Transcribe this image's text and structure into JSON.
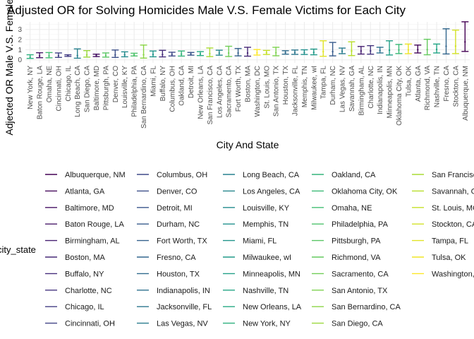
{
  "chart_data": {
    "type": "errorbar",
    "title": "Adjusted OR for Solving Homicides Male V.S. Female Victims for Each City",
    "xlabel": "City And State",
    "ylabel": "Adjected OR Male V.S. Female",
    "yticks": [
      0,
      1,
      2,
      3
    ],
    "ylim": [
      -0.3,
      3.75
    ],
    "grid": true,
    "legend_position": "bottom",
    "legend_title": "city_state",
    "points": [
      {
        "city": "New York, NY",
        "or": 0.26,
        "lo": 0.14,
        "hi": 0.5
      },
      {
        "city": "Baton Rouge, LA",
        "or": 0.38,
        "lo": 0.21,
        "hi": 0.7
      },
      {
        "city": "Omaha, NE",
        "or": 0.38,
        "lo": 0.2,
        "hi": 0.72
      },
      {
        "city": "Cincinnati, OH",
        "or": 0.4,
        "lo": 0.24,
        "hi": 0.68
      },
      {
        "city": "Chicago, IL",
        "or": 0.41,
        "lo": 0.34,
        "hi": 0.5
      },
      {
        "city": "Long Beach, CA",
        "or": 0.41,
        "lo": 0.16,
        "hi": 1.08
      },
      {
        "city": "San Diego, CA",
        "or": 0.48,
        "lo": 0.27,
        "hi": 0.91
      },
      {
        "city": "Baltimore, MD",
        "or": 0.43,
        "lo": 0.32,
        "hi": 0.56
      },
      {
        "city": "Pittsburgh, PA",
        "or": 0.43,
        "lo": 0.27,
        "hi": 0.68
      },
      {
        "city": "Denver, CO",
        "or": 0.48,
        "lo": 0.24,
        "hi": 0.97
      },
      {
        "city": "Louisville, KY",
        "or": 0.49,
        "lo": 0.3,
        "hi": 0.79
      },
      {
        "city": "Philadelphia, PA",
        "or": 0.5,
        "lo": 0.38,
        "hi": 0.65
      },
      {
        "city": "San Bernardino, CA",
        "or": 0.5,
        "lo": 0.17,
        "hi": 1.46
      },
      {
        "city": "Miami, FL",
        "or": 0.52,
        "lo": 0.3,
        "hi": 0.87
      },
      {
        "city": "Buffalo, NY",
        "or": 0.52,
        "lo": 0.29,
        "hi": 0.94
      },
      {
        "city": "Columbus, OH",
        "or": 0.53,
        "lo": 0.38,
        "hi": 0.75
      },
      {
        "city": "Oakland, CA",
        "or": 0.56,
        "lo": 0.37,
        "hi": 0.87
      },
      {
        "city": "Detroit, MI",
        "or": 0.58,
        "lo": 0.46,
        "hi": 0.73
      },
      {
        "city": "New Orleans, LA",
        "or": 0.58,
        "lo": 0.42,
        "hi": 0.81
      },
      {
        "city": "San Francisco, CA",
        "or": 0.61,
        "lo": 0.32,
        "hi": 1.17
      },
      {
        "city": "Los Angeles, CA",
        "or": 0.66,
        "lo": 0.46,
        "hi": 0.95
      },
      {
        "city": "Sacramento, CA",
        "or": 0.67,
        "lo": 0.33,
        "hi": 1.34
      },
      {
        "city": "Fort Worth, TX",
        "or": 0.67,
        "lo": 0.39,
        "hi": 1.12
      },
      {
        "city": "Boston, MA",
        "or": 0.67,
        "lo": 0.36,
        "hi": 1.24
      },
      {
        "city": "Washington, DC",
        "or": 0.69,
        "lo": 0.47,
        "hi": 1.02
      },
      {
        "city": "St. Louis, MO",
        "or": 0.7,
        "lo": 0.53,
        "hi": 0.93
      },
      {
        "city": "San Antonio, TX",
        "or": 0.7,
        "lo": 0.4,
        "hi": 1.24
      },
      {
        "city": "Houston, TX",
        "or": 0.71,
        "lo": 0.56,
        "hi": 0.9
      },
      {
        "city": "Jacksonville, FL",
        "or": 0.72,
        "lo": 0.54,
        "hi": 0.97
      },
      {
        "city": "Memphis, TN",
        "or": 0.72,
        "lo": 0.53,
        "hi": 0.99
      },
      {
        "city": "Milwaukee, wI",
        "or": 0.73,
        "lo": 0.5,
        "hi": 1.06
      },
      {
        "city": "Tampa, FL",
        "or": 0.81,
        "lo": 0.35,
        "hi": 1.88
      },
      {
        "city": "Durham, NC",
        "or": 0.81,
        "lo": 0.39,
        "hi": 1.72
      },
      {
        "city": "Las Vegas, NV",
        "or": 0.84,
        "lo": 0.61,
        "hi": 1.16
      },
      {
        "city": "Savannah, GA",
        "or": 0.87,
        "lo": 0.42,
        "hi": 1.78
      },
      {
        "city": "Birmingham, AL",
        "or": 0.87,
        "lo": 0.57,
        "hi": 1.32
      },
      {
        "city": "Charlotte, NC",
        "or": 0.88,
        "lo": 0.56,
        "hi": 1.4
      },
      {
        "city": "Indianapolis, IN",
        "or": 0.92,
        "lo": 0.68,
        "hi": 1.24
      },
      {
        "city": "Minneapolis, MN",
        "or": 0.95,
        "lo": 0.48,
        "hi": 1.88
      },
      {
        "city": "Oklahoma City, OK",
        "or": 0.97,
        "lo": 0.62,
        "hi": 1.52
      },
      {
        "city": "Tulsa, OK",
        "or": 0.98,
        "lo": 0.61,
        "hi": 1.56
      },
      {
        "city": "Atlanta, GA",
        "or": 1.0,
        "lo": 0.68,
        "hi": 1.46
      },
      {
        "city": "Richmond, VA",
        "or": 1.01,
        "lo": 0.5,
        "hi": 2.03
      },
      {
        "city": "Nashville, TN",
        "or": 1.03,
        "lo": 0.68,
        "hi": 1.56
      },
      {
        "city": "Fresno, CA",
        "or": 1.34,
        "lo": 0.58,
        "hi": 3.07
      },
      {
        "city": "Stockton, CA",
        "or": 1.35,
        "lo": 0.62,
        "hi": 2.94
      },
      {
        "city": "Albuquerque, NM",
        "or": 1.77,
        "lo": 0.83,
        "hi": 3.76
      }
    ]
  },
  "legend": {
    "title": "city_state",
    "columns": [
      [
        "Albuquerque, NM",
        "Atlanta, GA",
        "Baltimore, MD",
        "Baton Rouge, LA",
        "Birmingham, AL",
        "Boston, MA",
        "Buffalo, NY",
        "Charlotte, NC",
        "Chicago, IL",
        "Cincinnati, OH"
      ],
      [
        "Columbus, OH",
        "Denver, CO",
        "Detroit, MI",
        "Durham, NC",
        "Fort Worth, TX",
        "Fresno, CA",
        "Houston, TX",
        "Indianapolis, IN",
        "Jacksonville, FL",
        "Las Vegas, NV"
      ],
      [
        "Long Beach, CA",
        "Los Angeles, CA",
        "Louisville, KY",
        "Memphis, TN",
        "Miami, FL",
        "Milwaukee, wI",
        "Minneapolis, MN",
        "Nashville, TN",
        "New Orleans, LA",
        "New York, NY"
      ],
      [
        "Oakland, CA",
        "Oklahoma City, OK",
        "Omaha, NE",
        "Philadelphia, PA",
        "Pittsburgh, PA",
        "Richmond, VA",
        "Sacramento, CA",
        "San Antonio, TX",
        "San Bernardino, CA",
        "San Diego, CA"
      ],
      [
        "San Francisco, CA",
        "Savannah, GA",
        "St. Louis, MO",
        "Stockton, CA",
        "Tampa, FL",
        "Tulsa, OK",
        "Washington, DC"
      ]
    ]
  },
  "palette": [
    "#440154",
    "#482576",
    "#414487",
    "#35608d",
    "#2a788e",
    "#21908d",
    "#22a884",
    "#43bf71",
    "#7ad151",
    "#bddf26",
    "#fde725"
  ]
}
